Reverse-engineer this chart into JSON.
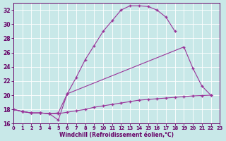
{
  "bg_color": "#c8e8e8",
  "line_color": "#993399",
  "xlabel": "Windchill (Refroidissement éolien,°C)",
  "xlim": [
    0,
    23
  ],
  "ylim": [
    16,
    33
  ],
  "xticks": [
    0,
    1,
    2,
    3,
    4,
    5,
    6,
    7,
    8,
    9,
    10,
    11,
    12,
    13,
    14,
    15,
    16,
    17,
    18,
    19,
    20,
    21,
    22,
    23
  ],
  "yticks": [
    16,
    18,
    20,
    22,
    24,
    26,
    28,
    30,
    32
  ],
  "line1_x": [
    0,
    1,
    2,
    3,
    4,
    5,
    6,
    7,
    8,
    9,
    10,
    11,
    12,
    13,
    14,
    15,
    16,
    17,
    18
  ],
  "line1_y": [
    18.0,
    17.7,
    17.5,
    17.5,
    17.4,
    17.5,
    20.2,
    22.5,
    25.0,
    27.0,
    29.0,
    30.5,
    32.0,
    32.6,
    32.6,
    32.5,
    32.0,
    31.0,
    29.0
  ],
  "line2_x": [
    0,
    1,
    2,
    3,
    4,
    5,
    6,
    19,
    20,
    21,
    22
  ],
  "line2_y": [
    18.0,
    17.7,
    17.5,
    17.5,
    17.4,
    16.5,
    20.2,
    26.8,
    23.8,
    21.3,
    20.0
  ],
  "line3_x": [
    0,
    1,
    2,
    3,
    4,
    5,
    6,
    7,
    8,
    9,
    10,
    11,
    12,
    13,
    14,
    15,
    16,
    17,
    18,
    19,
    20,
    21,
    22
  ],
  "line3_y": [
    18.0,
    17.7,
    17.5,
    17.5,
    17.4,
    17.4,
    17.6,
    17.8,
    18.0,
    18.3,
    18.5,
    18.7,
    18.9,
    19.1,
    19.3,
    19.4,
    19.5,
    19.6,
    19.7,
    19.8,
    19.9,
    19.95,
    20.0
  ]
}
